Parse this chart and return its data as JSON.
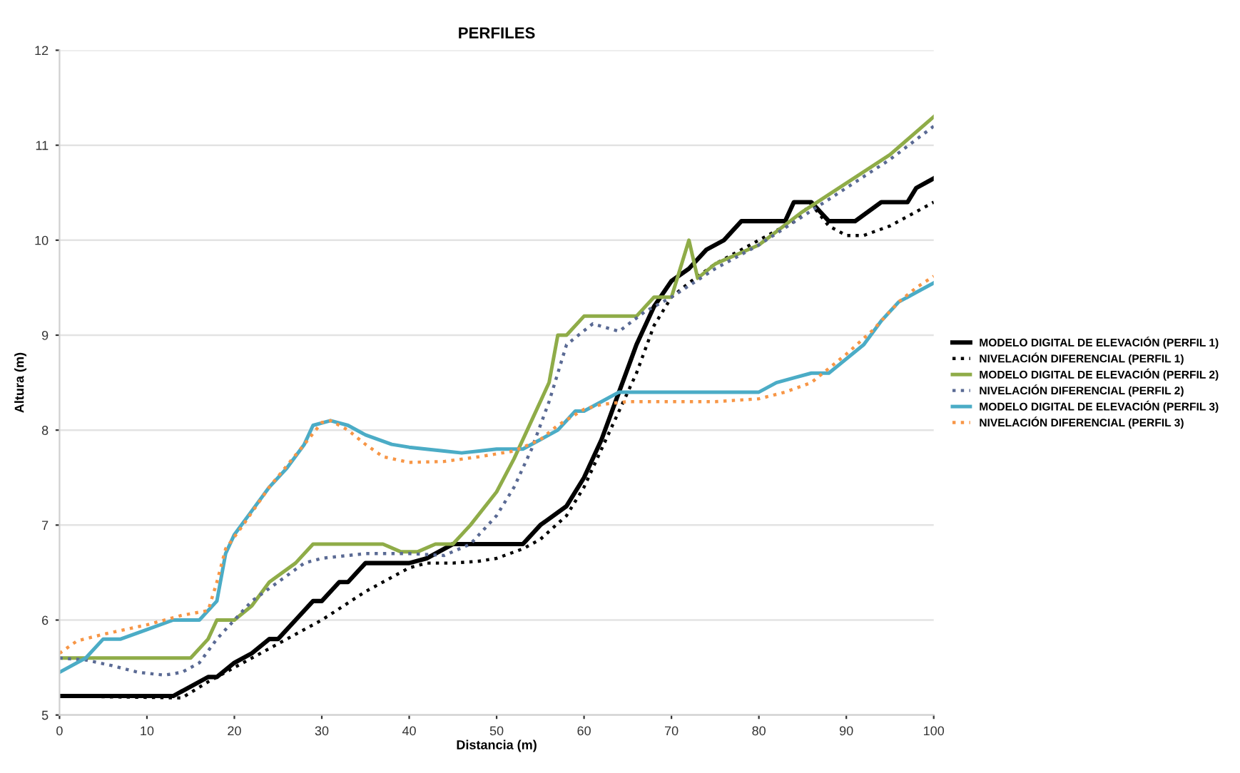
{
  "chart_data": {
    "type": "line",
    "title": "PERFILES",
    "xlabel": "Distancia (m)",
    "ylabel": "Altura (m)",
    "xlim": [
      0,
      100
    ],
    "xticks": [
      0,
      10,
      20,
      30,
      40,
      50,
      60,
      70,
      80,
      90,
      100
    ],
    "ylim": [
      5,
      12
    ],
    "yticks": [
      5,
      6,
      7,
      8,
      9,
      10,
      11,
      12
    ],
    "grid": "y",
    "legend": "right",
    "marker": "none",
    "series": [
      {
        "name": "MODELO DIGITAL DE ELEVACIÓN (PERFIL 1)",
        "color": "#000000",
        "line_style": "solid",
        "x": [
          0,
          13,
          17,
          18,
          20,
          22,
          24,
          25,
          27,
          29,
          30,
          32,
          33,
          35,
          40,
          42,
          45,
          53,
          55,
          58,
          60,
          62,
          64,
          66,
          68,
          70,
          72,
          74,
          76,
          78,
          83,
          84,
          86,
          88,
          91,
          94,
          97,
          98,
          100
        ],
        "values": [
          5.2,
          5.2,
          5.4,
          5.4,
          5.55,
          5.65,
          5.8,
          5.8,
          6.0,
          6.2,
          6.2,
          6.4,
          6.4,
          6.6,
          6.6,
          6.65,
          6.8,
          6.8,
          7.0,
          7.2,
          7.5,
          7.9,
          8.4,
          8.9,
          9.3,
          9.57,
          9.7,
          9.9,
          10.0,
          10.2,
          10.2,
          10.4,
          10.4,
          10.2,
          10.2,
          10.4,
          10.4,
          10.55,
          10.65
        ]
      },
      {
        "name": "NIVELACIÓN DIFERENCIAL (PERFIL 1)",
        "color": "#000000",
        "line_style": "dotted",
        "x": [
          0,
          14,
          17,
          20,
          25,
          30,
          35,
          40,
          42,
          45,
          48,
          50,
          53,
          55,
          58,
          60,
          62,
          64,
          66,
          68,
          70,
          72,
          75,
          80,
          84,
          86,
          88,
          90,
          92,
          95,
          98,
          100
        ],
        "values": [
          5.2,
          5.18,
          5.35,
          5.5,
          5.75,
          6.0,
          6.3,
          6.55,
          6.6,
          6.6,
          6.62,
          6.65,
          6.75,
          6.85,
          7.1,
          7.4,
          7.8,
          8.2,
          8.6,
          9.1,
          9.4,
          9.55,
          9.75,
          10.0,
          10.2,
          10.38,
          10.15,
          10.05,
          10.05,
          10.15,
          10.3,
          10.4
        ]
      },
      {
        "name": "MODELO DIGITAL DE ELEVACIÓN (PERFIL 2)",
        "color": "#8fac48",
        "line_style": "solid",
        "x": [
          0,
          15,
          17,
          18,
          20,
          22,
          24,
          27,
          29,
          37,
          39,
          41,
          43,
          45,
          47,
          50,
          52,
          54,
          56,
          57,
          58,
          60,
          66,
          68,
          70,
          72,
          73,
          75,
          80,
          85,
          90,
          95,
          100
        ],
        "values": [
          5.6,
          5.6,
          5.8,
          6.0,
          6.0,
          6.15,
          6.4,
          6.6,
          6.8,
          6.8,
          6.72,
          6.72,
          6.8,
          6.8,
          7.0,
          7.35,
          7.7,
          8.1,
          8.5,
          9.0,
          9.0,
          9.2,
          9.2,
          9.4,
          9.4,
          10.0,
          9.6,
          9.75,
          9.95,
          10.3,
          10.6,
          10.9,
          11.3
        ]
      },
      {
        "name": "NIVELACIÓN DIFERENCIAL (PERFIL 2)",
        "color": "#5a6a94",
        "line_style": "dotted",
        "x": [
          0,
          3,
          6,
          9,
          12,
          14,
          16,
          18,
          20,
          22,
          25,
          28,
          30,
          35,
          40,
          44,
          47,
          50,
          52,
          54,
          56,
          58,
          61,
          64,
          67,
          70,
          75,
          80,
          85,
          90,
          95,
          100
        ],
        "values": [
          5.6,
          5.58,
          5.52,
          5.45,
          5.42,
          5.45,
          5.55,
          5.8,
          6.0,
          6.2,
          6.4,
          6.6,
          6.65,
          6.7,
          6.7,
          6.68,
          6.8,
          7.1,
          7.4,
          7.8,
          8.3,
          8.9,
          9.12,
          9.04,
          9.25,
          9.4,
          9.7,
          9.95,
          10.25,
          10.55,
          10.85,
          11.2
        ]
      },
      {
        "name": "MODELO DIGITAL DE ELEVACIÓN (PERFIL 3)",
        "color": "#4bacc6",
        "line_style": "solid",
        "x": [
          0,
          3,
          5,
          7,
          10,
          13,
          16,
          18,
          19,
          20,
          22,
          24,
          26,
          28,
          29,
          31,
          33,
          35,
          38,
          40,
          44,
          46,
          48,
          50,
          53,
          55,
          57,
          59,
          60,
          62,
          64,
          80,
          82,
          84,
          86,
          88,
          90,
          92,
          94,
          96,
          98,
          100
        ],
        "values": [
          5.45,
          5.6,
          5.8,
          5.8,
          5.9,
          6.0,
          6.0,
          6.2,
          6.7,
          6.9,
          7.15,
          7.4,
          7.6,
          7.85,
          8.05,
          8.1,
          8.05,
          7.95,
          7.85,
          7.82,
          7.78,
          7.76,
          7.78,
          7.8,
          7.8,
          7.9,
          8.0,
          8.2,
          8.2,
          8.3,
          8.4,
          8.4,
          8.5,
          8.55,
          8.6,
          8.6,
          8.75,
          8.9,
          9.15,
          9.35,
          9.45,
          9.55
        ]
      },
      {
        "name": "NIVELACIÓN DIFERENCIAL (PERFIL 3)",
        "color": "#f79646",
        "line_style": "dotted",
        "x": [
          0,
          2,
          5,
          10,
          14,
          17,
          18,
          19,
          21,
          24,
          28,
          30,
          31,
          33,
          35,
          37,
          40,
          44,
          48,
          52,
          55,
          57,
          60,
          62,
          65,
          75,
          80,
          83,
          86,
          88,
          90,
          93,
          96,
          98,
          100
        ],
        "values": [
          5.65,
          5.78,
          5.85,
          5.95,
          6.05,
          6.1,
          6.4,
          6.75,
          7.0,
          7.4,
          7.85,
          8.08,
          8.1,
          8.0,
          7.85,
          7.72,
          7.66,
          7.67,
          7.72,
          7.78,
          7.9,
          8.05,
          8.22,
          8.27,
          8.3,
          8.3,
          8.33,
          8.4,
          8.5,
          8.65,
          8.8,
          9.05,
          9.35,
          9.5,
          9.62
        ]
      }
    ]
  }
}
